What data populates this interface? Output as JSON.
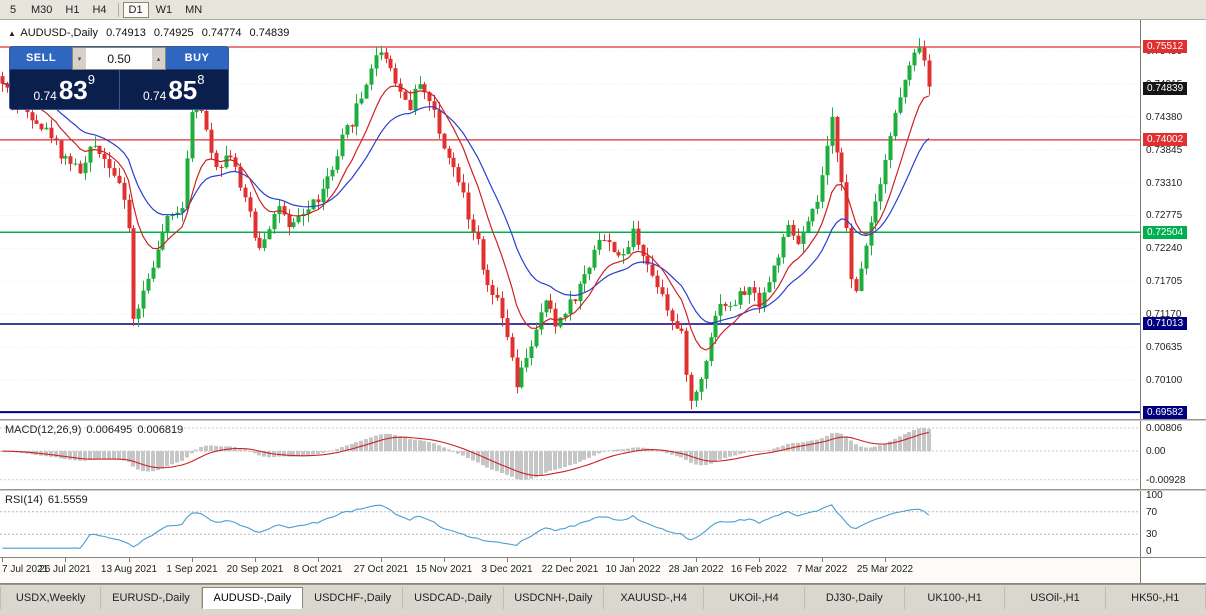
{
  "toolbar": {
    "timeframes": [
      {
        "label": "5",
        "active": false,
        "divider_before": false
      },
      {
        "label": "M30",
        "active": false,
        "divider_before": false
      },
      {
        "label": "H1",
        "active": false,
        "divider_before": false
      },
      {
        "label": "H4",
        "active": false,
        "divider_before": false
      },
      {
        "label": "D1",
        "active": true,
        "divider_before": true
      },
      {
        "label": "W1",
        "active": false,
        "divider_before": false
      },
      {
        "label": "MN",
        "active": false,
        "divider_before": false
      }
    ]
  },
  "chart_header": {
    "marker": "▲",
    "title": "AUDUSD-,Daily",
    "open": "0.74913",
    "high": "0.74925",
    "low": "0.74774",
    "close": "0.74839"
  },
  "trade_panel": {
    "sell_label": "SELL",
    "buy_label": "BUY",
    "volume": "0.50",
    "spin_down": "▾",
    "spin_up": "▴",
    "bid_prefix": "0.74",
    "bid_main": "83",
    "bid_sup": "9",
    "ask_prefix": "0.74",
    "ask_main": "85",
    "ask_sup": "8"
  },
  "macd_header": {
    "name": "MACD(12,26,9)",
    "value_main": "0.006495",
    "value_signal": "0.006819"
  },
  "rsi_header": {
    "name": "RSI(14)",
    "value": "61.5559"
  },
  "chart_data": {
    "type": "candlestick+indicators",
    "symbol": "AUDUSD-",
    "timeframe": "Daily",
    "num_candles": 192,
    "label_every": 13,
    "ohlc_display": {
      "open": 0.74913,
      "high": 0.74925,
      "low": 0.74774,
      "close": 0.74839
    },
    "last_price": {
      "value": 0.74839,
      "label": "0.74839",
      "color": "#151515"
    },
    "price_range": {
      "max": 0.7595,
      "min": 0.6947
    },
    "price_levels": [
      {
        "price": 0.75512,
        "label": "0.75512",
        "color": "#e03030",
        "width": 1.3
      },
      {
        "price": 0.74002,
        "label": "0.74002",
        "color": "#e03030",
        "width": 1.3
      },
      {
        "price": 0.72504,
        "label": "0.72504",
        "color": "#00b050",
        "width": 1.5
      },
      {
        "price": 0.71013,
        "label": "0.71013",
        "color": "#000080",
        "width": 1.5
      },
      {
        "price": 0.69582,
        "label": "0.69582",
        "color": "#000080",
        "width": 2
      }
    ],
    "axis_ticks": [
      {
        "value": 0.7545,
        "label": "0.75450"
      },
      {
        "value": 0.74915,
        "label": "0.74915"
      },
      {
        "value": 0.7438,
        "label": "0.74380"
      },
      {
        "value": 0.73845,
        "label": "0.73845"
      },
      {
        "value": 0.7331,
        "label": "0.73310"
      },
      {
        "value": 0.72775,
        "label": "0.72775"
      },
      {
        "value": 0.7224,
        "label": "0.72240"
      },
      {
        "value": 0.71705,
        "label": "0.71705"
      },
      {
        "value": 0.7117,
        "label": "0.71170"
      },
      {
        "value": 0.70635,
        "label": "0.70635"
      },
      {
        "value": 0.701,
        "label": "0.70100"
      }
    ],
    "dates": [
      "7 Jul 2021",
      "26 Jul 2021",
      "13 Aug 2021",
      "1 Sep 2021",
      "20 Sep 2021",
      "8 Oct 2021",
      "27 Oct 2021",
      "15 Nov 2021",
      "3 Dec 2021",
      "22 Dec 2021",
      "10 Jan 2022",
      "28 Jan 2022",
      "16 Feb 2022",
      "7 Mar 2022",
      "25 Mar 2022"
    ],
    "price_anchors": [
      [
        0,
        0.749
      ],
      [
        3,
        0.7458
      ],
      [
        6,
        0.7441
      ],
      [
        9,
        0.7415
      ],
      [
        13,
        0.7372
      ],
      [
        16,
        0.735
      ],
      [
        19,
        0.7392
      ],
      [
        22,
        0.7362
      ],
      [
        24,
        0.733
      ],
      [
        26,
        0.7258
      ],
      [
        27,
        0.7108
      ],
      [
        29,
        0.7152
      ],
      [
        31,
        0.72
      ],
      [
        34,
        0.7268
      ],
      [
        37,
        0.7295
      ],
      [
        39,
        0.7452
      ],
      [
        40,
        0.7466
      ],
      [
        42,
        0.7415
      ],
      [
        44,
        0.736
      ],
      [
        47,
        0.7378
      ],
      [
        50,
        0.73
      ],
      [
        53,
        0.7228
      ],
      [
        55,
        0.7262
      ],
      [
        57,
        0.7295
      ],
      [
        59,
        0.7252
      ],
      [
        62,
        0.7282
      ],
      [
        65,
        0.7305
      ],
      [
        68,
        0.735
      ],
      [
        71,
        0.7418
      ],
      [
        74,
        0.7468
      ],
      [
        76,
        0.752
      ],
      [
        78,
        0.7548
      ],
      [
        80,
        0.7518
      ],
      [
        82,
        0.7478
      ],
      [
        84,
        0.7455
      ],
      [
        86,
        0.7498
      ],
      [
        88,
        0.7462
      ],
      [
        91,
        0.7392
      ],
      [
        94,
        0.734
      ],
      [
        97,
        0.7255
      ],
      [
        100,
        0.716
      ],
      [
        102,
        0.7135
      ],
      [
        104,
        0.7082
      ],
      [
        106,
        0.6998
      ],
      [
        108,
        0.705
      ],
      [
        110,
        0.7088
      ],
      [
        112,
        0.714
      ],
      [
        114,
        0.7098
      ],
      [
        116,
        0.7125
      ],
      [
        118,
        0.7146
      ],
      [
        120,
        0.718
      ],
      [
        123,
        0.7242
      ],
      [
        126,
        0.7225
      ],
      [
        128,
        0.7206
      ],
      [
        130,
        0.7252
      ],
      [
        132,
        0.7218
      ],
      [
        134,
        0.718
      ],
      [
        136,
        0.7155
      ],
      [
        138,
        0.7105
      ],
      [
        140,
        0.7082
      ],
      [
        142,
        0.6972
      ],
      [
        144,
        0.7012
      ],
      [
        146,
        0.7085
      ],
      [
        148,
        0.714
      ],
      [
        150,
        0.7126
      ],
      [
        152,
        0.7148
      ],
      [
        154,
        0.7158
      ],
      [
        156,
        0.7136
      ],
      [
        158,
        0.717
      ],
      [
        160,
        0.7215
      ],
      [
        162,
        0.7255
      ],
      [
        164,
        0.7232
      ],
      [
        166,
        0.7262
      ],
      [
        168,
        0.73
      ],
      [
        170,
        0.7382
      ],
      [
        171,
        0.7432
      ],
      [
        173,
        0.734
      ],
      [
        175,
        0.7168
      ],
      [
        176,
        0.7152
      ],
      [
        178,
        0.7235
      ],
      [
        180,
        0.7302
      ],
      [
        182,
        0.7372
      ],
      [
        184,
        0.7442
      ],
      [
        186,
        0.7496
      ],
      [
        188,
        0.7536
      ],
      [
        189,
        0.7556
      ],
      [
        190,
        0.7526
      ],
      [
        191,
        0.7486
      ]
    ],
    "macd": {
      "fast": 12,
      "slow": 26,
      "signal": 9,
      "value_main": 0.006495,
      "value_signal": 0.006819,
      "ticks": [
        "0.00806",
        "0.00",
        "-0.00928"
      ]
    },
    "rsi": {
      "period": 14,
      "value": 61.5559,
      "ticks": [
        {
          "value": 100,
          "label": "100"
        },
        {
          "value": 70,
          "label": "70"
        },
        {
          "value": 30,
          "label": "30"
        },
        {
          "value": 0,
          "label": "0"
        }
      ]
    }
  },
  "colors": {
    "candle_up": "#1fae3d",
    "candle_down": "#e03131",
    "ma_fast": "#cc2222",
    "ma_slow": "#2a3fd0",
    "macd_hist": "#c6c6c6",
    "macd_signal": "#cc2222",
    "rsi_line": "#4a9ed0",
    "grid": "#ececec"
  },
  "bottom_tabs": [
    {
      "label": "USDX,Weekly",
      "active": false
    },
    {
      "label": "EURUSD-,Daily",
      "active": false
    },
    {
      "label": "AUDUSD-,Daily",
      "active": true
    },
    {
      "label": "USDCHF-,Daily",
      "active": false
    },
    {
      "label": "USDCAD-,Daily",
      "active": false
    },
    {
      "label": "USDCNH-,Daily",
      "active": false
    },
    {
      "label": "XAUUSD-,H4",
      "active": false
    },
    {
      "label": "UKOil-,H4",
      "active": false
    },
    {
      "label": "DJ30-,Daily",
      "active": false
    },
    {
      "label": "UK100-,H1",
      "active": false
    },
    {
      "label": "USOil-,H1",
      "active": false
    },
    {
      "label": "HK50-,H1",
      "active": false
    }
  ]
}
